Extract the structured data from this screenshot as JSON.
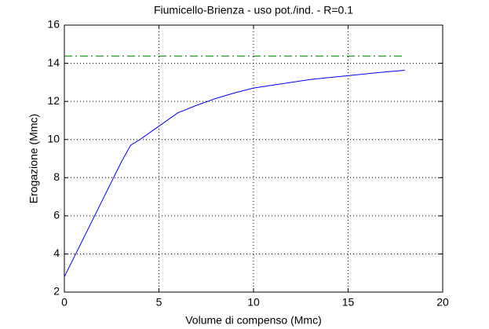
{
  "chart_data": {
    "type": "line",
    "title": "Fiumicello-Brienza  -  uso pot./ind.  -   R=0.1",
    "xlabel": "Volume di compenso (Mmc)",
    "ylabel": "Erogazione (Mmc)",
    "x": [
      0,
      1,
      2,
      3,
      3.5,
      4,
      5,
      6,
      7,
      8,
      9,
      10,
      11,
      12,
      13,
      14,
      15,
      16,
      17,
      18
    ],
    "series": [
      {
        "color": "#0000ff",
        "dash": "solid",
        "values": [
          2.8,
          4.8,
          6.8,
          8.8,
          9.7,
          10.0,
          10.7,
          11.4,
          11.8,
          12.15,
          12.45,
          12.7,
          12.85,
          13.0,
          13.15,
          13.25,
          13.35,
          13.45,
          13.55,
          13.63
        ]
      },
      {
        "color": "#008000",
        "dash": "dashdot",
        "values": [
          14.38,
          14.38,
          14.38,
          14.38,
          14.38,
          14.38,
          14.38,
          14.38,
          14.38,
          14.38,
          14.38,
          14.38,
          14.38,
          14.38,
          14.38,
          14.38,
          14.38,
          14.38,
          14.38,
          14.38
        ]
      }
    ],
    "xlim": [
      0,
      20
    ],
    "xticks": [
      0,
      5,
      10,
      15,
      20
    ],
    "ylim": [
      2,
      16
    ],
    "yticks": [
      2,
      4,
      6,
      8,
      10,
      12,
      14,
      16
    ],
    "grid": true
  }
}
